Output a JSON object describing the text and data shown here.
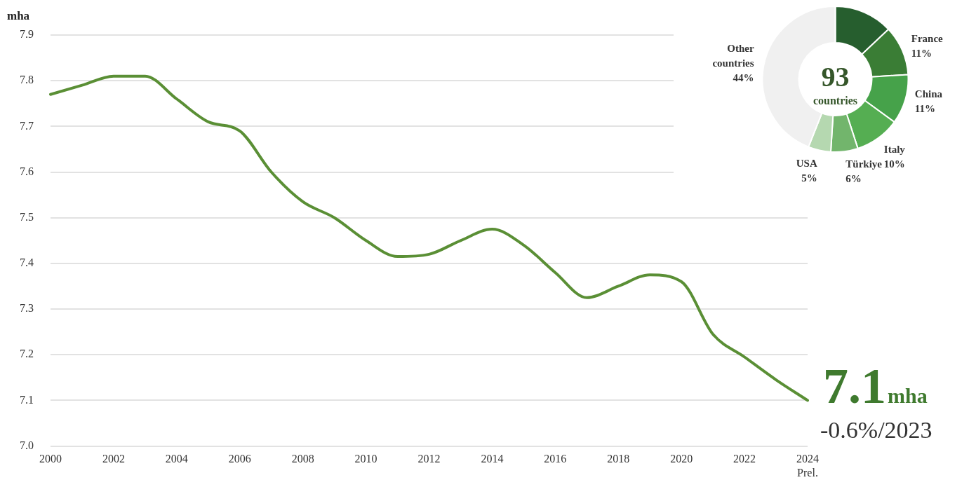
{
  "chart_data": [
    {
      "type": "line",
      "ylabel": "mha",
      "categories": [
        "2000",
        null,
        "2002",
        null,
        "2004",
        null,
        "2006",
        null,
        "2008",
        null,
        "2010",
        null,
        "2012",
        null,
        "2014",
        null,
        "2016",
        null,
        "2018",
        null,
        "2020",
        null,
        "2022",
        null,
        "2024\nPrel."
      ],
      "series": [
        {
          "color": "#5a8f35",
          "values": [
            7.77,
            7.79,
            7.81,
            7.81,
            7.76,
            7.71,
            7.69,
            7.6,
            7.535,
            7.5,
            7.45,
            7.415,
            7.42,
            7.45,
            7.475,
            7.44,
            7.38,
            7.325,
            7.35,
            7.375,
            7.36,
            7.245,
            7.195,
            7.145,
            7.1
          ]
        }
      ],
      "ylim": [
        7.0,
        7.9
      ],
      "yticks": [
        {
          "value": 7,
          "label": "7.0"
        },
        7.1,
        7.2,
        7.3,
        7.4,
        7.5,
        7.6,
        7.7,
        7.8,
        7.9
      ],
      "grid": "y",
      "legend": false,
      "marker": "none",
      "line_style": "solid",
      "annotations": [
        {
          "text": "7.1mha",
          "x": "2024\nPrel.",
          "y": 7.1
        },
        "-0.6%/2023"
      ]
    },
    {
      "type": "donut",
      "categories": [
        null,
        "France",
        "China",
        "Italy",
        "Türkiye",
        "USA",
        "Other countries"
      ],
      "values": [
        13,
        11,
        11,
        10,
        6,
        5,
        44
      ],
      "colors": [
        "#265e2e",
        "#3a7d35",
        "#46a24a",
        "#55ae52",
        "#72b56c",
        "#b5d8b0",
        "#f0f0f0"
      ],
      "value_labels": [
        null,
        "11%",
        "11%",
        "10%",
        "6%",
        "5%",
        "44%"
      ],
      "legend": false,
      "annotations": [
        "93",
        "countries"
      ]
    }
  ]
}
